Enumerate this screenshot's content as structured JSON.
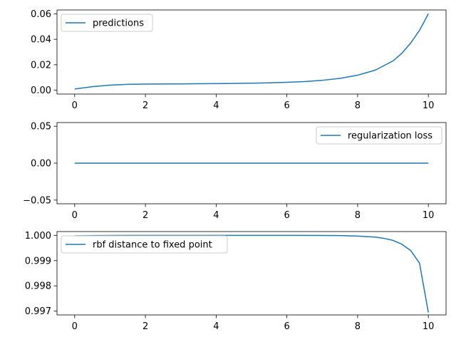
{
  "figure": {
    "background": "#ffffff"
  },
  "chart_data": [
    {
      "type": "line",
      "xlim": [
        -0.5,
        10.5
      ],
      "ylim": [
        -0.003,
        0.063
      ],
      "xticks": [
        0,
        2,
        4,
        6,
        8,
        10
      ],
      "xtick_labels": [
        "0",
        "2",
        "4",
        "6",
        "8",
        "10"
      ],
      "yticks": [
        0.0,
        0.02,
        0.04,
        0.06
      ],
      "ytick_labels": [
        "0.00",
        "0.02",
        "0.04",
        "0.06"
      ],
      "legend_loc": "upper left",
      "series": [
        {
          "name": "predictions",
          "color": "#1f77b4",
          "x": [
            0,
            0.5,
            1,
            1.5,
            2,
            2.5,
            3,
            3.5,
            4,
            4.5,
            5,
            5.5,
            6,
            6.5,
            7,
            7.5,
            8,
            8.5,
            9,
            9.25,
            9.5,
            9.75,
            10
          ],
          "y": [
            0.001,
            0.0028,
            0.004,
            0.0046,
            0.0048,
            0.0049,
            0.005,
            0.0051,
            0.0052,
            0.0053,
            0.0055,
            0.0058,
            0.0062,
            0.0068,
            0.0078,
            0.0093,
            0.0118,
            0.0158,
            0.023,
            0.029,
            0.037,
            0.047,
            0.06
          ]
        }
      ]
    },
    {
      "type": "line",
      "xlim": [
        -0.5,
        10.5
      ],
      "ylim": [
        -0.055,
        0.055
      ],
      "xticks": [
        0,
        2,
        4,
        6,
        8,
        10
      ],
      "xtick_labels": [
        "0",
        "2",
        "4",
        "6",
        "8",
        "10"
      ],
      "yticks": [
        -0.05,
        0.0,
        0.05
      ],
      "ytick_labels": [
        "−0.05",
        "0.00",
        "0.05"
      ],
      "legend_loc": "upper right",
      "series": [
        {
          "name": "regularization loss",
          "color": "#1f77b4",
          "x": [
            0,
            10
          ],
          "y": [
            0,
            0
          ]
        }
      ]
    },
    {
      "type": "line",
      "xlim": [
        -0.5,
        10.5
      ],
      "ylim": [
        0.99685,
        1.00015
      ],
      "xticks": [
        0,
        2,
        4,
        6,
        8,
        10
      ],
      "xtick_labels": [
        "0",
        "2",
        "4",
        "6",
        "8",
        "10"
      ],
      "yticks": [
        0.997,
        0.998,
        0.999,
        1.0
      ],
      "ytick_labels": [
        "0.997",
        "0.998",
        "0.999",
        "1.000"
      ],
      "legend_loc": "upper left",
      "series": [
        {
          "name": "rbf distance to fixed point",
          "color": "#1f77b4",
          "x": [
            0,
            0.5,
            1,
            1.5,
            2,
            3,
            4,
            5,
            6,
            6.5,
            7,
            7.5,
            8,
            8.5,
            8.75,
            9,
            9.25,
            9.5,
            9.75,
            10
          ],
          "y": [
            0.99998,
            0.99999,
            0.999995,
            0.999998,
            1.0,
            1.0,
            1.0,
            1.0,
            1.0,
            0.999998,
            0.999995,
            0.99999,
            0.99997,
            0.99993,
            0.99988,
            0.9998,
            0.99965,
            0.9994,
            0.9989,
            0.99695
          ]
        }
      ]
    }
  ]
}
